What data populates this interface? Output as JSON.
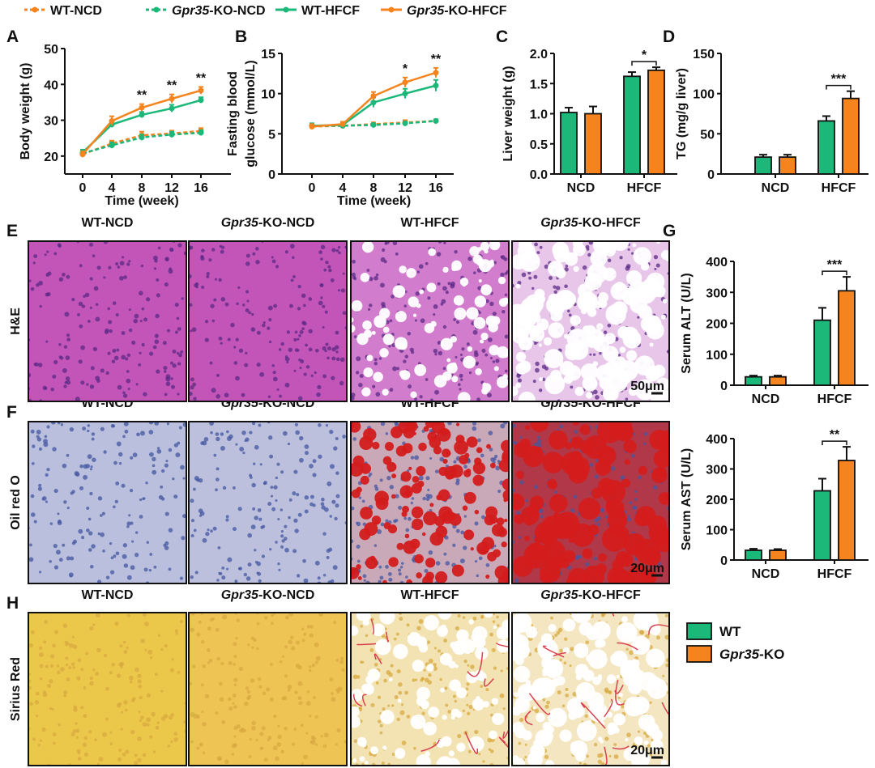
{
  "legend_top": [
    {
      "gene": "",
      "suffix": "WT-NCD",
      "color": "#f5841f",
      "dashed": true
    },
    {
      "gene": "Gpr35",
      "suffix": "-KO-NCD",
      "color": "#1bb87a",
      "dashed": true
    },
    {
      "gene": "",
      "suffix": "WT-HFCF",
      "color": "#1bb87a",
      "dashed": false
    },
    {
      "gene": "Gpr35",
      "suffix": "-KO-HFCF",
      "color": "#f5841f",
      "dashed": false
    }
  ],
  "legend_bar": [
    {
      "gene": "",
      "suffix": "WT",
      "color": "#1bb87a"
    },
    {
      "gene": "Gpr35",
      "suffix": "-KO",
      "color": "#f5841f"
    }
  ],
  "panel_letters": {
    "A": "A",
    "B": "B",
    "C": "C",
    "D": "D",
    "E": "E",
    "F": "F",
    "G": "G",
    "H": "H"
  },
  "histology": {
    "column_headers": [
      {
        "gene": "",
        "suffix": "WT-NCD"
      },
      {
        "gene": "Gpr35",
        "suffix": "-KO-NCD"
      },
      {
        "gene": "",
        "suffix": "WT-HFCF"
      },
      {
        "gene": "Gpr35",
        "suffix": "-KO-HFCF"
      }
    ],
    "rows": [
      {
        "label": "H&E",
        "scale_bar": "50μm"
      },
      {
        "label": "Oil red O",
        "scale_bar": "20μm"
      },
      {
        "label": "Sirius Red",
        "scale_bar": "20μm"
      }
    ]
  },
  "chart_data": [
    {
      "id": "A",
      "type": "line",
      "xlabel": "Time (week)",
      "ylabel": "Body weight (g)",
      "x": [
        0,
        4,
        8,
        12,
        16
      ],
      "xticks": [
        "0",
        "4",
        "8",
        "12",
        "16"
      ],
      "ylim": [
        15,
        50
      ],
      "yticks": [
        "20",
        "30",
        "40",
        "50"
      ],
      "ytick_values": [
        20,
        30,
        40,
        50
      ],
      "series": [
        {
          "name": "WT-NCD",
          "color": "#f5841f",
          "dashed": true,
          "values": [
            20.5,
            23.5,
            25.8,
            26.3,
            27.0
          ],
          "err": [
            0.8,
            0.8,
            1.0,
            0.8,
            0.8
          ]
        },
        {
          "name": "Gpr35-KO-NCD",
          "color": "#1bb87a",
          "dashed": true,
          "values": [
            20.8,
            23.0,
            25.2,
            26.0,
            26.5
          ],
          "err": [
            0.8,
            0.8,
            0.8,
            0.8,
            0.7
          ]
        },
        {
          "name": "WT-HFCF",
          "color": "#1bb87a",
          "dashed": false,
          "values": [
            21.0,
            28.8,
            31.5,
            33.3,
            35.6
          ],
          "err": [
            0.8,
            0.8,
            0.8,
            1.0,
            0.8
          ]
        },
        {
          "name": "Gpr35-KO-HFCF",
          "color": "#f5841f",
          "dashed": false,
          "values": [
            20.5,
            29.8,
            33.5,
            36.0,
            38.3
          ],
          "err": [
            0.8,
            1.3,
            1.0,
            1.2,
            1.0
          ]
        }
      ],
      "significance": [
        "",
        "",
        "**",
        "**",
        "**"
      ]
    },
    {
      "id": "B",
      "type": "line",
      "xlabel": "Time (week)",
      "ylabel": [
        "Fasting blood",
        "glucose (mmol/L)"
      ],
      "x": [
        0,
        4,
        8,
        12,
        16
      ],
      "xticks": [
        "0",
        "4",
        "8",
        "12",
        "16"
      ],
      "ylim": [
        0,
        15
      ],
      "yticks": [
        "0",
        "5",
        "10",
        "15"
      ],
      "ytick_values": [
        0,
        5,
        10,
        15
      ],
      "series": [
        {
          "name": "WT-NCD",
          "color": "#f5841f",
          "dashed": true,
          "values": [
            5.9,
            6.0,
            6.2,
            6.4,
            6.6
          ],
          "err": [
            0.3,
            0.2,
            0.2,
            0.3,
            0.2
          ]
        },
        {
          "name": "Gpr35-KO-NCD",
          "color": "#1bb87a",
          "dashed": true,
          "values": [
            6.0,
            6.0,
            6.1,
            6.3,
            6.6
          ],
          "err": [
            0.3,
            0.2,
            0.2,
            0.2,
            0.2
          ]
        },
        {
          "name": "WT-HFCF",
          "color": "#1bb87a",
          "dashed": false,
          "values": [
            6.0,
            6.1,
            8.9,
            10.0,
            11.0
          ],
          "err": [
            0.3,
            0.3,
            0.6,
            0.6,
            0.7
          ]
        },
        {
          "name": "Gpr35-KO-HFCF",
          "color": "#f5841f",
          "dashed": false,
          "values": [
            5.9,
            6.2,
            9.7,
            11.4,
            12.6
          ],
          "err": [
            0.3,
            0.3,
            0.5,
            0.6,
            0.6
          ]
        }
      ],
      "significance": [
        "",
        "",
        "",
        "*",
        "**"
      ]
    },
    {
      "id": "C",
      "type": "bar",
      "ylabel": "Liver weight (g)",
      "categories": [
        "NCD",
        "HFCF"
      ],
      "ylim": [
        0,
        2.0
      ],
      "yticks": [
        "0.0",
        "0.5",
        "1.0",
        "1.5",
        "2.0"
      ],
      "ytick_values": [
        0,
        0.5,
        1,
        1.5,
        2
      ],
      "series": [
        {
          "name": "WT",
          "color": "#1bb87a",
          "values": [
            1.02,
            1.62
          ],
          "err": [
            0.08,
            0.07
          ]
        },
        {
          "name": "Gpr35-KO",
          "color": "#f5841f",
          "values": [
            1.0,
            1.72
          ],
          "err": [
            0.12,
            0.05
          ]
        }
      ],
      "significance": [
        "",
        "*"
      ]
    },
    {
      "id": "D",
      "type": "bar",
      "ylabel": "TG (mg/g liver)",
      "categories": [
        "NCD",
        "HFCF"
      ],
      "ylim": [
        0,
        150
      ],
      "yticks": [
        "0",
        "50",
        "100",
        "150"
      ],
      "ytick_values": [
        0,
        50,
        100,
        150
      ],
      "series": [
        {
          "name": "WT",
          "color": "#1bb87a",
          "values": [
            21,
            66
          ],
          "err": [
            3,
            6
          ]
        },
        {
          "name": "Gpr35-KO",
          "color": "#f5841f",
          "values": [
            21,
            94
          ],
          "err": [
            3,
            9
          ]
        }
      ],
      "significance": [
        "",
        "***"
      ]
    },
    {
      "id": "G1",
      "type": "bar",
      "ylabel": "Serum ALT (U/L)",
      "categories": [
        "NCD",
        "HFCF"
      ],
      "ylim": [
        0,
        400
      ],
      "yticks": [
        "0",
        "100",
        "200",
        "300",
        "400"
      ],
      "ytick_values": [
        0,
        100,
        200,
        300,
        400
      ],
      "series": [
        {
          "name": "WT",
          "color": "#1bb87a",
          "values": [
            27,
            210
          ],
          "err": [
            4,
            40
          ]
        },
        {
          "name": "Gpr35-KO",
          "color": "#f5841f",
          "values": [
            27,
            305
          ],
          "err": [
            4,
            45
          ]
        }
      ],
      "significance": [
        "",
        "***"
      ]
    },
    {
      "id": "G2",
      "type": "bar",
      "ylabel": "Serum AST (U/L)",
      "categories": [
        "NCD",
        "HFCF"
      ],
      "ylim": [
        0,
        400
      ],
      "yticks": [
        "0",
        "100",
        "200",
        "300",
        "400"
      ],
      "ytick_values": [
        0,
        100,
        200,
        300,
        400
      ],
      "series": [
        {
          "name": "WT",
          "color": "#1bb87a",
          "values": [
            32,
            228
          ],
          "err": [
            5,
            40
          ]
        },
        {
          "name": "Gpr35-KO",
          "color": "#f5841f",
          "values": [
            32,
            328
          ],
          "err": [
            4,
            45
          ]
        }
      ],
      "significance": [
        "",
        "**"
      ]
    }
  ]
}
